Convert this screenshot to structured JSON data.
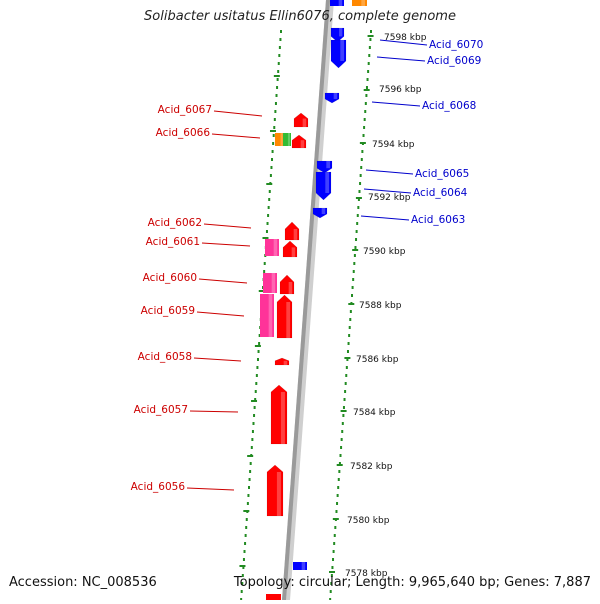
{
  "title": "Solibacter usitatus Ellin6076, complete genome",
  "footer": {
    "accession": "Accession: NC_008536",
    "summary": "Topology: circular; Length: 9,965,640 bp; Genes: 7,887"
  },
  "colors": {
    "left_label": "#cc0000",
    "right_label": "#0000cc",
    "forward_gene": "#ff0000",
    "reverse_gene": "#0000ff",
    "magenta_gene": "#ff3399",
    "orange_gene": "#ff8800",
    "green_gene": "#33bb33",
    "backbone": "#9a9a9a",
    "tick": "#228b22"
  },
  "ruler_labels": [
    "7598 kbp",
    "7596 kbp",
    "7594 kbp",
    "7592 kbp",
    "7590 kbp",
    "7588 kbp",
    "7586 kbp",
    "7584 kbp",
    "7582 kbp",
    "7580 kbp",
    "7578 kbp"
  ],
  "left_genes": [
    {
      "label": "Acid_6067"
    },
    {
      "label": "Acid_6066"
    },
    {
      "label": "Acid_6062"
    },
    {
      "label": "Acid_6061"
    },
    {
      "label": "Acid_6060"
    },
    {
      "label": "Acid_6059"
    },
    {
      "label": "Acid_6058"
    },
    {
      "label": "Acid_6057"
    },
    {
      "label": "Acid_6056"
    }
  ],
  "right_genes": [
    {
      "label": "Acid_6070"
    },
    {
      "label": "Acid_6069"
    },
    {
      "label": "Acid_6068"
    },
    {
      "label": "Acid_6065"
    },
    {
      "label": "Acid_6064"
    },
    {
      "label": "Acid_6063"
    }
  ]
}
